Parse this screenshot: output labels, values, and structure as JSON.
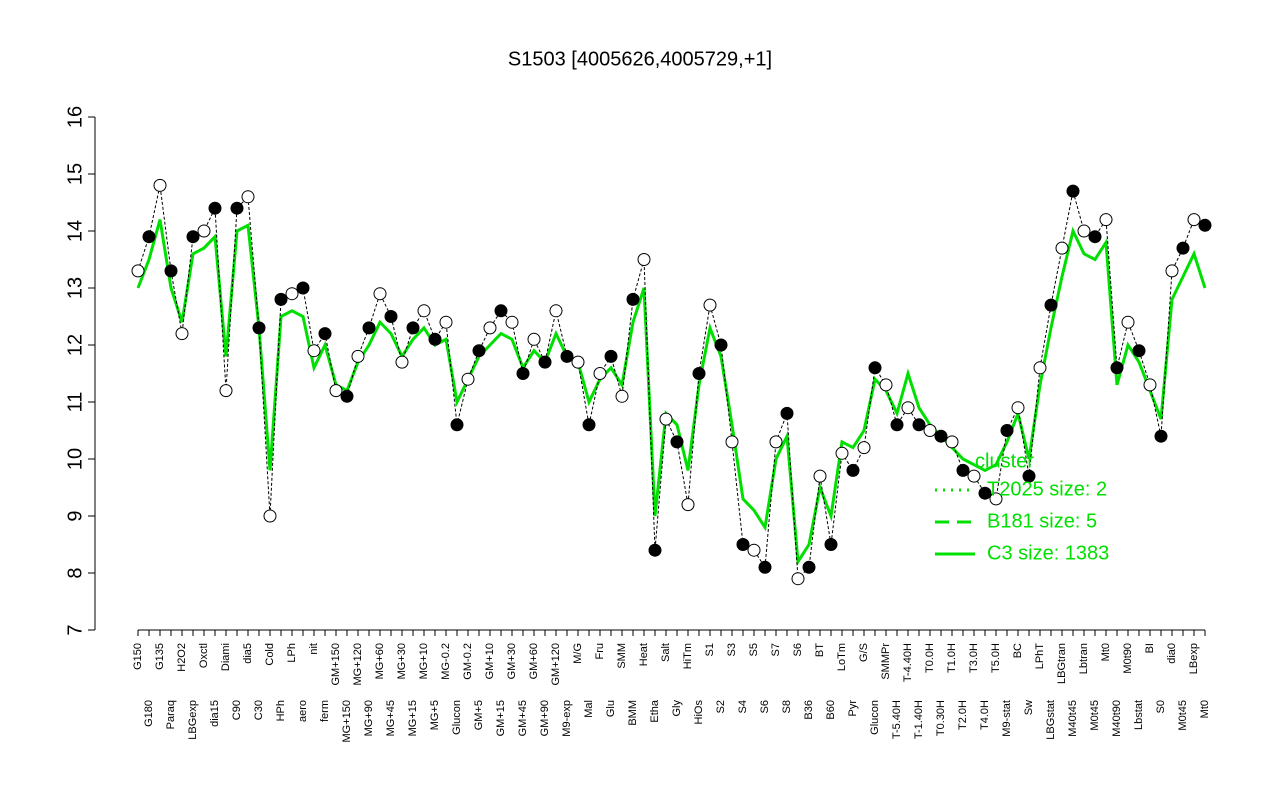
{
  "chart_data": {
    "type": "line",
    "title": "S1503 [4005626,4005729,+1]",
    "categories": [
      "G150",
      "G180",
      "G135",
      "Paraq",
      "H2O2",
      "LBGexp",
      "Oxctl",
      "dia15",
      "Diami",
      "C90",
      "dia5",
      "C30",
      "Cold",
      "HPh",
      "LPh",
      "aero",
      "nit",
      "ferm",
      "GM+150",
      "MG+150",
      "MG+120",
      "MG+90",
      "MG+60",
      "MG+45",
      "MG+30",
      "MG+15",
      "MG+10",
      "MG+5",
      "MG-0.2",
      "Glucon",
      "GM-0.2",
      "GM+5",
      "GM+10",
      "GM+15",
      "GM+30",
      "GM+45",
      "GM+60",
      "GM+90",
      "GM+120",
      "M9-exp",
      "M/G",
      "Mal",
      "Fru",
      "Glu",
      "SMM",
      "BMM",
      "Heat",
      "Etha",
      "Salt",
      "Gly",
      "HiTm",
      "HiOs",
      "S1",
      "S2",
      "S3",
      "S4",
      "S5",
      "S6",
      "S7",
      "S8",
      "S6",
      "B36",
      "BT",
      "B60",
      "LoTm",
      "Pyr",
      "G/S",
      "Glucon",
      "SMMPr",
      "T-5.40H",
      "T-4.40H",
      "T-1.40H",
      "T0.0H",
      "T0.30H",
      "T1.0H",
      "T2.0H",
      "T3.0H",
      "T4.0H",
      "T5.0H",
      "M9-stat",
      "BC",
      "Sw",
      "LPhT",
      "LBGstat",
      "LBGtran",
      "M40t45",
      "Lbtran",
      "M0t45",
      "Mt0",
      "M40t90",
      "M0t90",
      "Lbstat",
      "BI",
      "S0",
      "dia0",
      "M0t45",
      "LBexp",
      "Mt0"
    ],
    "series": [
      {
        "name": "S1503",
        "color": "#000000",
        "values": [
          13.3,
          13.9,
          14.8,
          13.3,
          12.2,
          13.9,
          14.0,
          14.4,
          11.2,
          14.4,
          14.6,
          12.3,
          9.0,
          12.8,
          12.9,
          13.0,
          11.9,
          12.2,
          11.2,
          11.1,
          11.8,
          12.3,
          12.9,
          12.5,
          11.7,
          12.3,
          12.6,
          12.1,
          12.4,
          10.6,
          11.4,
          11.9,
          12.3,
          12.6,
          12.4,
          11.5,
          12.1,
          11.7,
          12.6,
          11.8,
          11.7,
          10.6,
          11.5,
          11.8,
          11.1,
          12.8,
          13.5,
          8.4,
          10.7,
          10.3,
          9.2,
          11.5,
          12.7,
          12.0,
          10.3,
          8.5,
          8.4,
          8.1,
          10.3,
          10.8,
          7.9,
          8.1,
          9.7,
          8.5,
          10.1,
          9.8,
          10.2,
          11.6,
          11.3,
          10.6,
          10.9,
          10.6,
          10.5,
          10.4,
          10.3,
          9.8,
          9.7,
          9.4,
          9.3,
          10.5,
          10.9,
          9.7,
          11.6,
          12.7,
          13.7,
          14.7,
          14.0,
          13.9,
          14.2,
          11.6,
          12.4,
          11.9,
          11.3,
          10.4,
          13.3,
          13.7,
          14.2,
          14.1
        ]
      },
      {
        "name": "C3 size: 1383",
        "color": "#00e000",
        "values": [
          13.0,
          13.5,
          14.2,
          13.0,
          12.4,
          13.6,
          13.7,
          13.9,
          11.8,
          14.0,
          14.1,
          12.3,
          9.8,
          12.5,
          12.6,
          12.5,
          11.6,
          12.0,
          11.3,
          11.2,
          11.7,
          12.0,
          12.4,
          12.2,
          11.8,
          12.1,
          12.3,
          12.0,
          12.1,
          11.0,
          11.4,
          11.8,
          12.0,
          12.2,
          12.1,
          11.6,
          11.9,
          11.7,
          12.2,
          11.8,
          11.7,
          11.0,
          11.4,
          11.6,
          11.3,
          12.4,
          13.0,
          9.0,
          10.8,
          10.6,
          9.8,
          11.3,
          12.3,
          11.8,
          10.6,
          9.3,
          9.1,
          8.8,
          10.0,
          10.4,
          8.2,
          8.5,
          9.5,
          9.0,
          10.3,
          10.2,
          10.5,
          11.4,
          11.2,
          10.8,
          11.5,
          10.9,
          10.6,
          10.4,
          10.2,
          10.0,
          9.9,
          9.8,
          9.9,
          10.3,
          10.8,
          10.0,
          11.3,
          12.3,
          13.2,
          14.0,
          13.6,
          13.5,
          13.8,
          11.3,
          12.0,
          11.7,
          11.2,
          10.7,
          12.8,
          13.2,
          13.6,
          13.0
        ]
      }
    ],
    "legend": [
      "T2025 size: 2",
      "B181 size: 5",
      "C3 size: 1383"
    ],
    "legend_title": "cluster",
    "ylim": [
      7,
      16
    ],
    "yticks": [
      7,
      8,
      9,
      10,
      11,
      12,
      13,
      14,
      15,
      16
    ]
  }
}
